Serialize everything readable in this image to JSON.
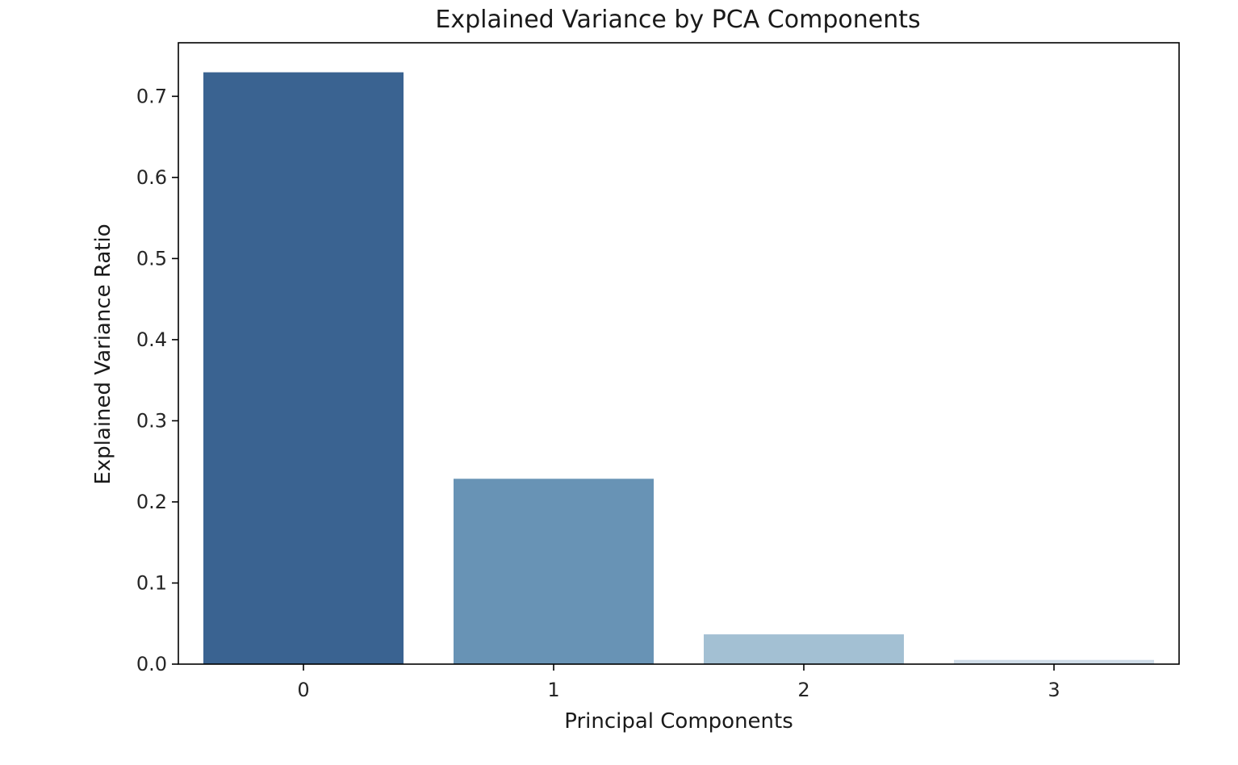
{
  "chart_data": {
    "type": "bar",
    "title": "Explained Variance by PCA Components",
    "xlabel": "Principal Components",
    "ylabel": "Explained Variance Ratio",
    "categories": [
      "0",
      "1",
      "2",
      "3"
    ],
    "values": [
      0.7296,
      0.2285,
      0.0367,
      0.0052
    ],
    "colors": [
      "#3a6391",
      "#6893b5",
      "#a3c0d3",
      "#cfdce8"
    ],
    "ylim": [
      0,
      0.766
    ],
    "yticks": [
      0.0,
      0.1,
      0.2,
      0.3,
      0.4,
      0.5,
      0.6,
      0.7
    ],
    "ytick_labels": [
      "0.0",
      "0.1",
      "0.2",
      "0.3",
      "0.4",
      "0.5",
      "0.6",
      "0.7"
    ],
    "grid": false,
    "legend": null
  }
}
